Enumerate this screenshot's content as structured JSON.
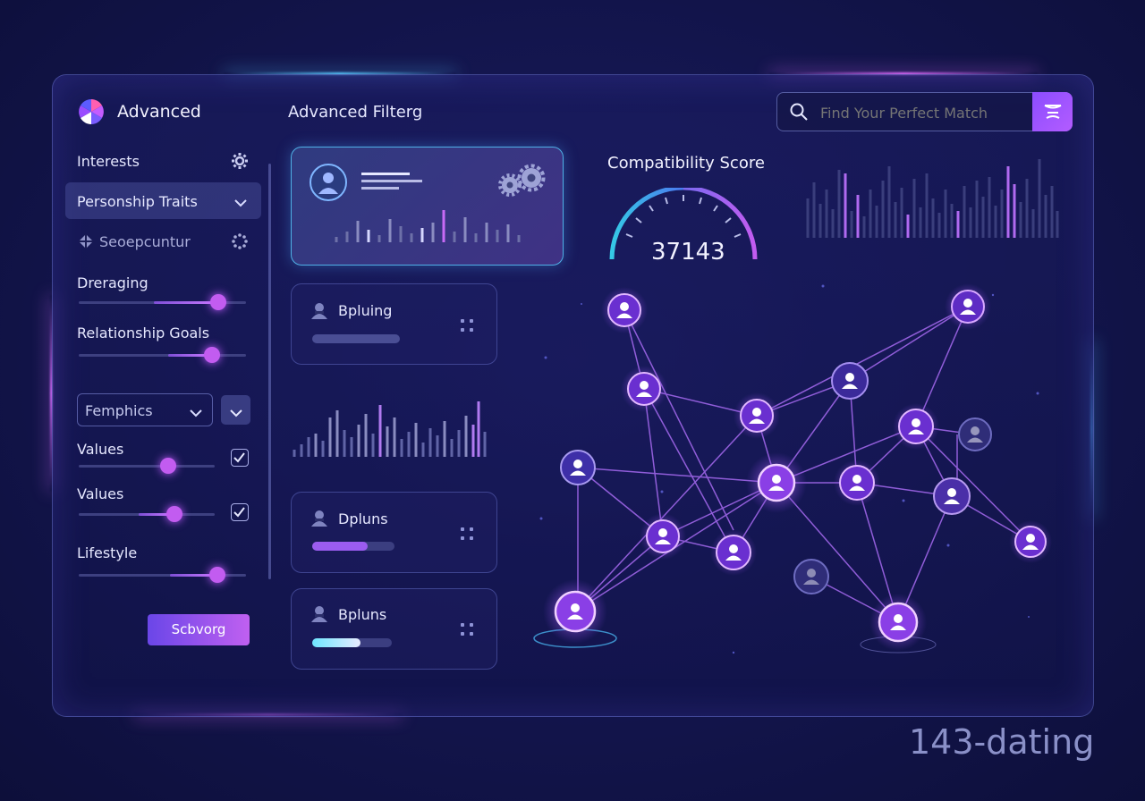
{
  "brand": {
    "name": "Advanced",
    "watermark": "143-dating"
  },
  "header": {
    "section_title": "Advanced Filterg"
  },
  "search": {
    "placeholder": "Find Your Perfect Match"
  },
  "sidebar": {
    "interests_label": "Interests",
    "personality_dropdown": "Personship Traits",
    "separator_item": "Seoepcuntur",
    "sliders": [
      {
        "label": "Dreraging",
        "value": 0.82
      },
      {
        "label": "Relationship Goals",
        "value": 0.8
      }
    ],
    "select_value": "Femphics",
    "value_rows": [
      {
        "label": "Values",
        "value": 0.65,
        "checked": true
      },
      {
        "label": "Values",
        "value": 0.71,
        "checked": true
      }
    ],
    "lifestyle": {
      "label": "Lifestyle",
      "value": 0.82
    },
    "action_button": "Scbvorg"
  },
  "cards": [
    {
      "title": "Bpluing",
      "progress": 0.33,
      "color": "#5a5fa8"
    },
    {
      "title": "Dpluns",
      "progress": 0.67,
      "color": "#9b5cf0"
    },
    {
      "title": "Bpluns",
      "progress": 0.61,
      "color": "#cfe6ff"
    }
  ],
  "compatibility": {
    "title": "Compatibility Score",
    "score": "37143",
    "level": 0.5
  },
  "colors": {
    "accent": "#b05cff",
    "cyan": "#35c9e6",
    "background": "#141650"
  },
  "icons": [
    "logo-icon",
    "gear-icon",
    "chevron-down-icon",
    "search-icon",
    "filter-icon",
    "person-icon",
    "grid-dots-icon",
    "check-icon"
  ]
}
